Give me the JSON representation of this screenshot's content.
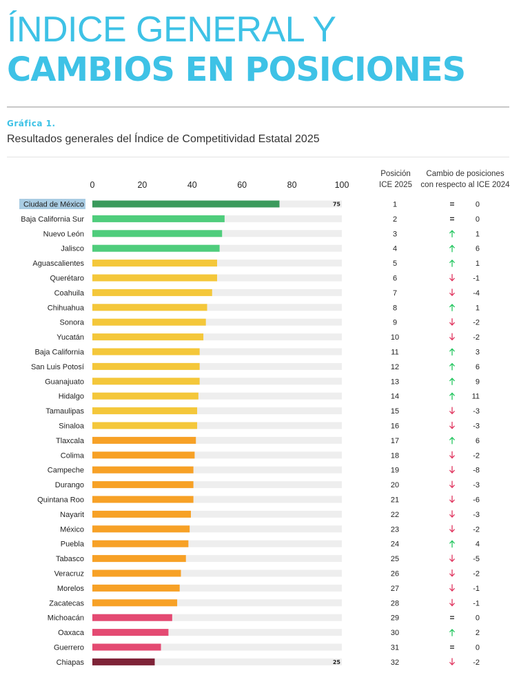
{
  "heading": {
    "line1": "ÍNDICE GENERAL Y",
    "line2": "CAMBIOS EN POSICIONES"
  },
  "figure_label": "Gráfica 1.",
  "columns": {
    "position_line1": "Posición",
    "position_line2": "ICE 2025",
    "change_line1": "Cambio de posiciones",
    "change_line2": "con respecto al ICE 2024"
  },
  "colors": {
    "accent": "#3ec2e6",
    "dark_green": "#3a9a5c",
    "green": "#4fcd7c",
    "yellow": "#f4c73a",
    "orange": "#f7a126",
    "pink": "#e44a72",
    "dark_red": "#7e2337",
    "track": "#eeeeee",
    "up": "#22c55e",
    "down": "#e0345e"
  },
  "icons": {
    "up": "arrow-up-icon",
    "down": "arrow-down-icon",
    "same": "equals-icon"
  },
  "chart_data": {
    "type": "bar",
    "orientation": "horizontal",
    "title": "Resultados generales del Índice de Competitividad Estatal 2025",
    "xlim": [
      0,
      100
    ],
    "ticks": [
      "0",
      "20",
      "40",
      "60",
      "80",
      "100"
    ],
    "data_labels": {
      "Ciudad de México": "75",
      "Chiapas": "25"
    },
    "highlighted": "Ciudad de México",
    "rows": [
      {
        "state": "Ciudad de México",
        "value": 75,
        "color": "dark_green",
        "position": "1",
        "change": "0",
        "trend": "same"
      },
      {
        "state": "Baja California Sur",
        "value": 53,
        "color": "green",
        "position": "2",
        "change": "0",
        "trend": "same"
      },
      {
        "state": "Nuevo León",
        "value": 52,
        "color": "green",
        "position": "3",
        "change": "1",
        "trend": "up"
      },
      {
        "state": "Jalisco",
        "value": 51,
        "color": "green",
        "position": "4",
        "change": "6",
        "trend": "up"
      },
      {
        "state": "Aguascalientes",
        "value": 50,
        "color": "yellow",
        "position": "5",
        "change": "1",
        "trend": "up"
      },
      {
        "state": "Querétaro",
        "value": 50,
        "color": "yellow",
        "position": "6",
        "change": "-1",
        "trend": "down"
      },
      {
        "state": "Coahuila",
        "value": 48,
        "color": "yellow",
        "position": "7",
        "change": "-4",
        "trend": "down"
      },
      {
        "state": "Chihuahua",
        "value": 46,
        "color": "yellow",
        "position": "8",
        "change": "1",
        "trend": "up"
      },
      {
        "state": "Sonora",
        "value": 45.5,
        "color": "yellow",
        "position": "9",
        "change": "-2",
        "trend": "down"
      },
      {
        "state": "Yucatán",
        "value": 44.5,
        "color": "yellow",
        "position": "10",
        "change": "-2",
        "trend": "down"
      },
      {
        "state": "Baja California",
        "value": 43,
        "color": "yellow",
        "position": "11",
        "change": "3",
        "trend": "up"
      },
      {
        "state": "San Luis Potosí",
        "value": 43,
        "color": "yellow",
        "position": "12",
        "change": "6",
        "trend": "up"
      },
      {
        "state": "Guanajuato",
        "value": 43,
        "color": "yellow",
        "position": "13",
        "change": "9",
        "trend": "up"
      },
      {
        "state": "Hidalgo",
        "value": 42.5,
        "color": "yellow",
        "position": "14",
        "change": "11",
        "trend": "up"
      },
      {
        "state": "Tamaulipas",
        "value": 42,
        "color": "yellow",
        "position": "15",
        "change": "-3",
        "trend": "down"
      },
      {
        "state": "Sinaloa",
        "value": 42,
        "color": "yellow",
        "position": "16",
        "change": "-3",
        "trend": "down"
      },
      {
        "state": "Tlaxcala",
        "value": 41.5,
        "color": "orange",
        "position": "17",
        "change": "6",
        "trend": "up"
      },
      {
        "state": "Colima",
        "value": 41,
        "color": "orange",
        "position": "18",
        "change": "-2",
        "trend": "down"
      },
      {
        "state": "Campeche",
        "value": 40.5,
        "color": "orange",
        "position": "19",
        "change": "-8",
        "trend": "down"
      },
      {
        "state": "Durango",
        "value": 40.5,
        "color": "orange",
        "position": "20",
        "change": "-3",
        "trend": "down"
      },
      {
        "state": "Quintana Roo",
        "value": 40.5,
        "color": "orange",
        "position": "21",
        "change": "-6",
        "trend": "down"
      },
      {
        "state": "Nayarit",
        "value": 39.5,
        "color": "orange",
        "position": "22",
        "change": "-3",
        "trend": "down"
      },
      {
        "state": "México",
        "value": 39,
        "color": "orange",
        "position": "23",
        "change": "-2",
        "trend": "down"
      },
      {
        "state": "Puebla",
        "value": 38.5,
        "color": "orange",
        "position": "24",
        "change": "4",
        "trend": "up"
      },
      {
        "state": "Tabasco",
        "value": 37.5,
        "color": "orange",
        "position": "25",
        "change": "-5",
        "trend": "down"
      },
      {
        "state": "Veracruz",
        "value": 35.5,
        "color": "orange",
        "position": "26",
        "change": "-2",
        "trend": "down"
      },
      {
        "state": "Morelos",
        "value": 35,
        "color": "orange",
        "position": "27",
        "change": "-1",
        "trend": "down"
      },
      {
        "state": "Zacatecas",
        "value": 34,
        "color": "orange",
        "position": "28",
        "change": "-1",
        "trend": "down"
      },
      {
        "state": "Michoacán",
        "value": 32,
        "color": "pink",
        "position": "29",
        "change": "0",
        "trend": "same"
      },
      {
        "state": "Oaxaca",
        "value": 30.5,
        "color": "pink",
        "position": "30",
        "change": "2",
        "trend": "up"
      },
      {
        "state": "Guerrero",
        "value": 27.5,
        "color": "pink",
        "position": "31",
        "change": "0",
        "trend": "same"
      },
      {
        "state": "Chiapas",
        "value": 25,
        "color": "dark_red",
        "position": "32",
        "change": "-2",
        "trend": "down"
      }
    ]
  }
}
